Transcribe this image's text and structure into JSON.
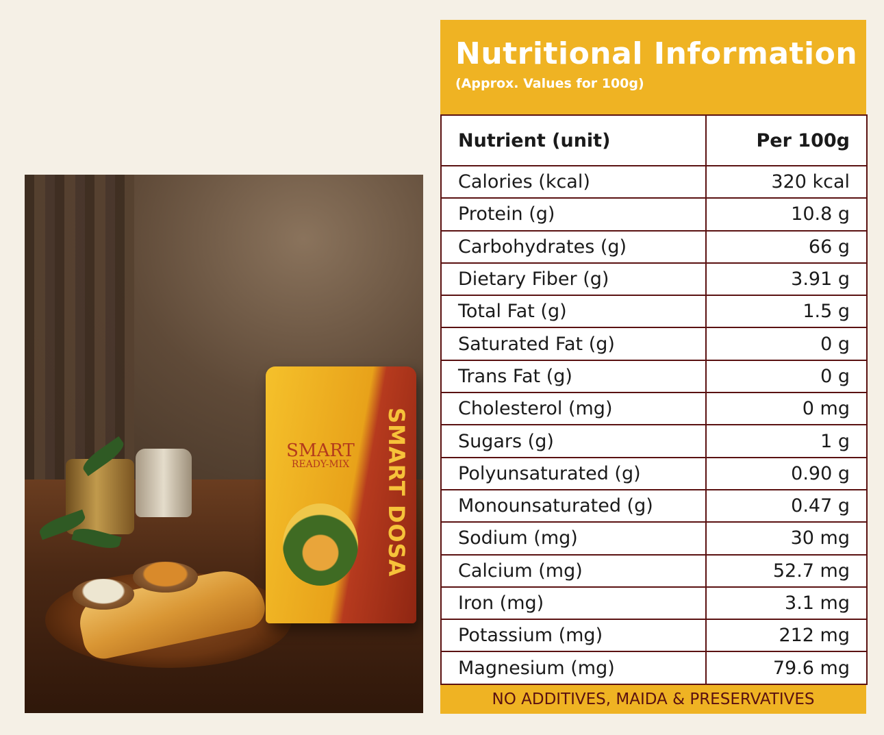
{
  "photo": {
    "pack_brand": "SMART",
    "pack_brand_sub": "READY-MIX",
    "pack_product": "SMART DOSA"
  },
  "nutrition": {
    "title": "Nutritional Information",
    "subtitle": "(Approx. Values for 100g)",
    "header": {
      "nutrient": "Nutrient (unit)",
      "per": "Per 100g"
    },
    "rows": [
      {
        "name": "Calories (kcal)",
        "value": "320 kcal"
      },
      {
        "name": "Protein (g)",
        "value": "10.8 g"
      },
      {
        "name": "Carbohydrates (g)",
        "value": "66 g"
      },
      {
        "name": "Dietary Fiber (g)",
        "value": "3.91 g"
      },
      {
        "name": "Total Fat (g)",
        "value": "1.5 g"
      },
      {
        "name": "Saturated Fat (g)",
        "value": "0 g"
      },
      {
        "name": "Trans Fat (g)",
        "value": "0 g"
      },
      {
        "name": "Cholesterol (mg)",
        "value": "0 mg"
      },
      {
        "name": "Sugars (g)",
        "value": "1 g"
      },
      {
        "name": "Polyunsaturated (g)",
        "value": "0.90 g"
      },
      {
        "name": "Monounsaturated (g)",
        "value": "0.47 g"
      },
      {
        "name": "Sodium (mg)",
        "value": "30 mg"
      },
      {
        "name": "Calcium (mg)",
        "value": "52.7 mg"
      },
      {
        "name": "Iron (mg)",
        "value": "3.1 mg"
      },
      {
        "name": "Potassium (mg)",
        "value": "212 mg"
      },
      {
        "name": "Magnesium (mg)",
        "value": "79.6 mg"
      }
    ],
    "footer": "NO ADDITIVES, MAIDA & PRESERVATIVES"
  },
  "colors": {
    "accent": "#efb323",
    "border": "#5a1111",
    "background": "#f5f0e6"
  }
}
